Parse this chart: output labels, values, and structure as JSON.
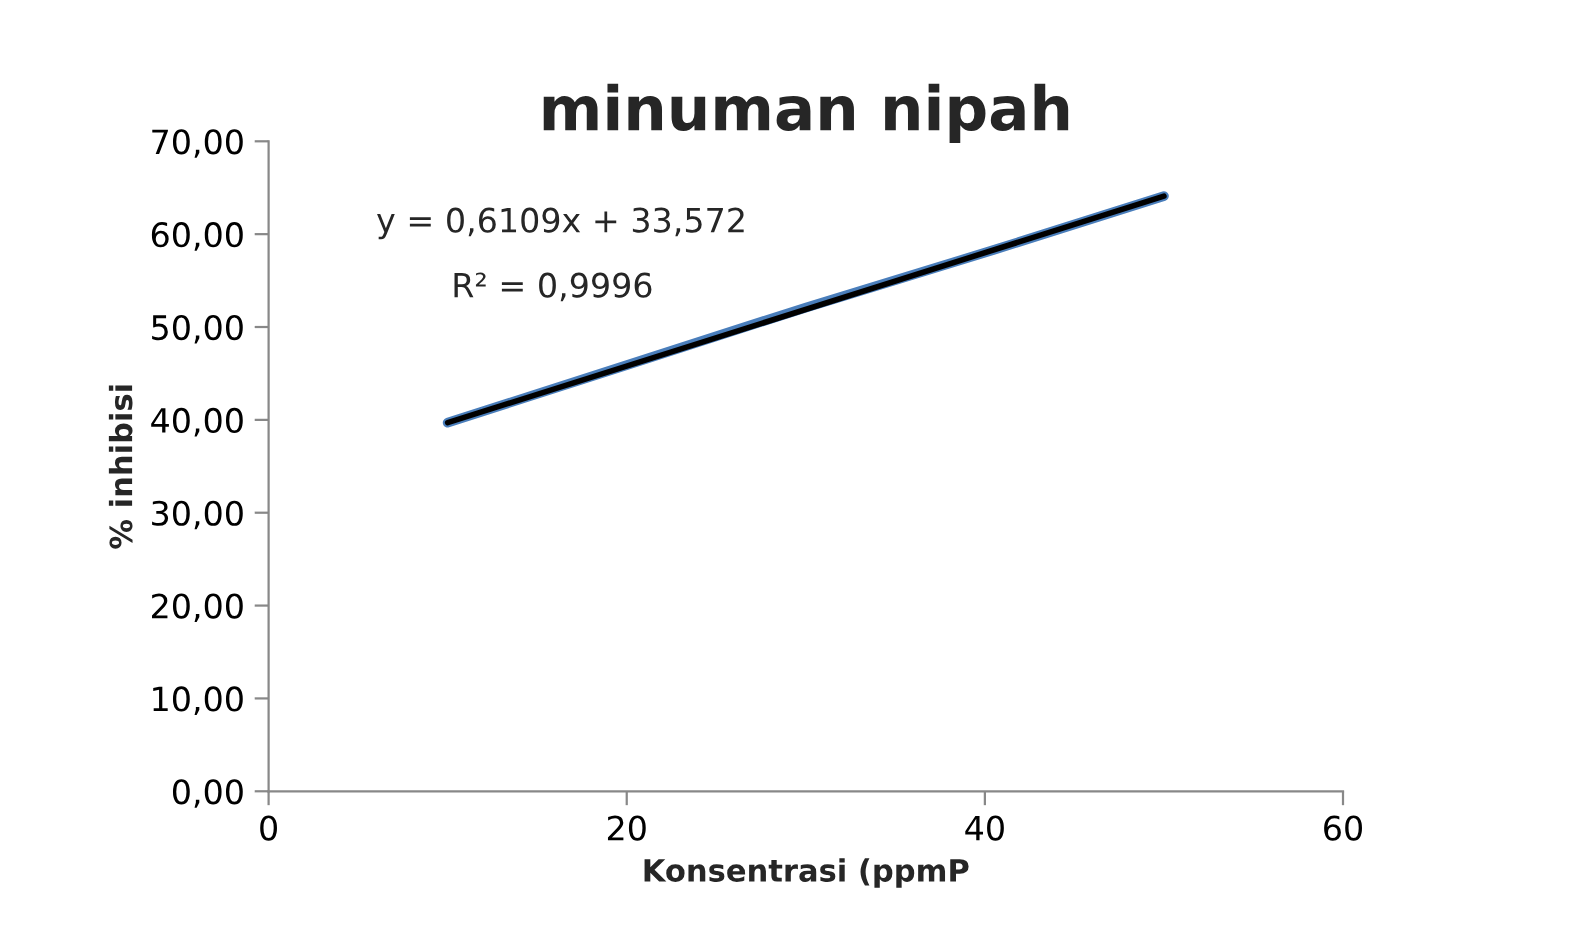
{
  "chart_data": {
    "type": "line",
    "title": "minuman nipah",
    "xlabel": "Konsentrasi (ppmP",
    "ylabel": "% inhibisi",
    "x": [
      10,
      20,
      30,
      40,
      50
    ],
    "series": [
      {
        "color": "#4a7ebb",
        "values": [
          39.7,
          45.9,
          52.1,
          58.0,
          64.1
        ]
      },
      {
        "type": "line",
        "color": "#000000",
        "x": [
          10,
          50
        ],
        "values": [
          39.7,
          64.1
        ]
      }
    ],
    "xlim": [
      0,
      60
    ],
    "xticks": [
      0,
      20,
      40,
      60
    ],
    "ylim": [
      0,
      70
    ],
    "yticks": [
      {
        "value": 0,
        "label": "0,00"
      },
      {
        "value": 10,
        "label": "10,00"
      },
      {
        "value": 20,
        "label": "20,00"
      },
      {
        "value": 30,
        "label": "30,00"
      },
      {
        "value": 40,
        "label": "40,00"
      },
      {
        "value": 50,
        "label": "50,00"
      },
      {
        "value": 60,
        "label": "60,00"
      },
      {
        "value": 70,
        "label": "70,00"
      }
    ],
    "annotations": [
      "y = 0,6109x + 33,572",
      "R² = 0,9996"
    ],
    "grid": false,
    "legend": false,
    "marker": "none",
    "line_style": "solid"
  }
}
